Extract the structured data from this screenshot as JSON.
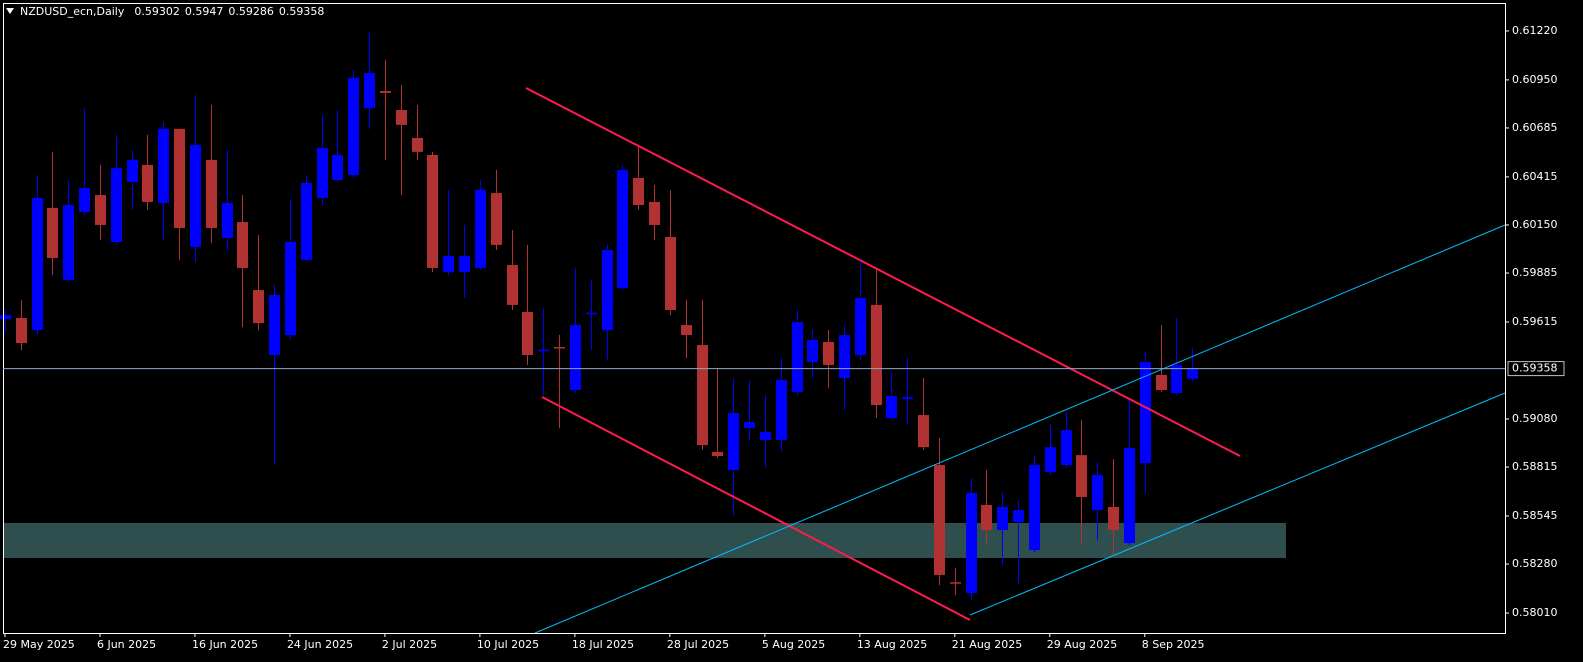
{
  "chart_data": {
    "type": "candlestick",
    "title": "NZDUSD_ecn,Daily",
    "categories": [
      "29 May 2025",
      null,
      null,
      null,
      null,
      null,
      "6 Jun 2025",
      null,
      null,
      null,
      null,
      null,
      "16 Jun 2025",
      null,
      null,
      null,
      null,
      null,
      "24 Jun 2025",
      null,
      null,
      null,
      null,
      null,
      "2 Jul 2025",
      null,
      null,
      null,
      null,
      null,
      "10 Jul 2025",
      null,
      null,
      null,
      null,
      null,
      "18 Jul 2025",
      null,
      null,
      null,
      null,
      null,
      "28 Jul 2025",
      null,
      null,
      null,
      null,
      null,
      "5 Aug 2025",
      null,
      null,
      null,
      null,
      null,
      "13 Aug 2025",
      null,
      null,
      null,
      null,
      null,
      "21 Aug 2025",
      null,
      null,
      null,
      null,
      null,
      "29 Aug 2025",
      null,
      null,
      null,
      null,
      null,
      "8 Sep 2025",
      null,
      null,
      null
    ],
    "open": [
      0.5963,
      0.59637,
      0.5957,
      0.60244,
      0.59847,
      0.60222,
      0.60315,
      0.60056,
      0.60387,
      0.60481,
      0.60271,
      0.6068,
      0.60029,
      0.60509,
      0.60078,
      0.60166,
      0.59791,
      0.59433,
      0.59543,
      0.59957,
      0.60299,
      0.60398,
      0.60426,
      0.60795,
      0.60889,
      0.60784,
      0.6063,
      0.60536,
      0.59891,
      0.59891,
      0.59913,
      0.60326,
      0.59929,
      0.5967,
      0.5946,
      0.59477,
      0.5924,
      0.5966,
      0.5957,
      0.59802,
      0.60409,
      0.60277,
      0.60084,
      0.59598,
      0.59488,
      0.58898,
      0.58799,
      0.5903,
      0.58964,
      0.58964,
      0.59229,
      0.59394,
      0.59505,
      0.59306,
      0.59433,
      0.59709,
      0.59085,
      0.5919,
      0.59102,
      0.58826,
      0.5818,
      0.5812,
      0.58606,
      0.58468,
      0.58512,
      0.58357,
      0.58787,
      0.58826,
      0.58881,
      0.58578,
      0.58595,
      0.58396,
      0.58837,
      0.59323,
      0.59223,
      0.59302
    ],
    "high": [
      0.5968,
      0.59736,
      0.60426,
      0.60553,
      0.60398,
      0.60795,
      0.60481,
      0.60646,
      0.60564,
      0.60646,
      0.60718,
      0.6068,
      0.60867,
      0.60812,
      0.60564,
      0.60315,
      0.60095,
      0.59819,
      0.60288,
      0.60426,
      0.60757,
      0.60784,
      0.61005,
      0.61209,
      0.6106,
      0.60922,
      0.60812,
      0.60553,
      0.60343,
      0.6015,
      0.60398,
      0.60453,
      0.60122,
      0.6004,
      0.59692,
      0.59543,
      0.59913,
      0.59847,
      0.6004,
      0.60481,
      0.60591,
      0.60371,
      0.60343,
      0.59736,
      0.59736,
      0.59361,
      0.59306,
      0.59295,
      0.59212,
      0.59416,
      0.59681,
      0.59571,
      0.59571,
      0.59598,
      0.59946,
      0.59902,
      0.59339,
      0.5942,
      0.59306,
      0.58975,
      0.58258,
      0.58754,
      0.58799,
      0.58677,
      0.58633,
      0.58881,
      0.59047,
      0.59118,
      0.59074,
      0.58843,
      0.58859,
      0.59185,
      0.5945,
      0.59598,
      0.59637,
      0.5947
    ],
    "low": [
      0.5956,
      0.5946,
      0.59543,
      0.59874,
      0.59836,
      0.60205,
      0.60067,
      0.6004,
      0.60233,
      0.60233,
      0.60067,
      0.59957,
      0.59946,
      0.60051,
      0.60012,
      0.59587,
      0.5957,
      0.58826,
      0.59516,
      0.59946,
      0.6026,
      0.60387,
      0.6041,
      0.6068,
      0.60508,
      0.60315,
      0.60508,
      0.59891,
      0.59874,
      0.59747,
      0.59902,
      0.60012,
      0.59681,
      0.59378,
      0.59212,
      0.5903,
      0.59223,
      0.5946,
      0.59405,
      0.59791,
      0.60233,
      0.60067,
      0.59653,
      0.59416,
      0.58909,
      0.58865,
      0.5855,
      0.58964,
      0.58809,
      0.58898,
      0.59212,
      0.59306,
      0.59251,
      0.5913,
      0.59405,
      0.59085,
      0.59074,
      0.5905,
      0.58909,
      0.58164,
      0.58109,
      0.58081,
      0.58385,
      0.58275,
      0.58175,
      0.58346,
      0.58771,
      0.58809,
      0.58385,
      0.58412,
      0.5833,
      0.58385,
      0.58672,
      0.59229,
      0.59212,
      0.59286
    ],
    "close": [
      0.59653,
      0.59499,
      0.60299,
      0.59968,
      0.6026,
      0.60354,
      0.6015,
      0.60464,
      0.60509,
      0.60277,
      0.6068,
      0.60133,
      0.60591,
      0.60133,
      0.60271,
      0.59913,
      0.59609,
      0.59764,
      0.60056,
      0.60382,
      0.60575,
      0.60536,
      0.60961,
      0.60988,
      0.60878,
      0.60702,
      0.60553,
      0.59913,
      0.59979,
      0.59979,
      0.60343,
      0.6004,
      0.59709,
      0.59433,
      0.59462,
      0.59471,
      0.59598,
      0.59666,
      0.60012,
      0.60453,
      0.6026,
      0.6015,
      0.59681,
      0.59543,
      0.58936,
      0.58876,
      0.59113,
      0.59063,
      0.59008,
      0.59295,
      0.59614,
      0.59516,
      0.59378,
      0.59543,
      0.59747,
      0.59157,
      0.59207,
      0.592,
      0.58925,
      0.5822,
      0.58175,
      0.58672,
      0.58468,
      0.58595,
      0.58578,
      0.58826,
      0.58925,
      0.59019,
      0.5865,
      0.58771,
      0.58468,
      0.5892,
      0.59394,
      0.5924,
      0.59378,
      0.59358
    ],
    "up_color": "#0000ff",
    "down_color": "#b03232",
    "ylim": [
      0.579,
      0.61374
    ],
    "yticks": [
      {
        "value": 0.6122,
        "label": "0.61220"
      },
      {
        "value": 0.6095,
        "label": "0.60950"
      },
      0.60685,
      0.60415,
      {
        "value": 0.6015,
        "label": "0.60150"
      },
      0.59885,
      0.59615,
      {
        "value": 0.5908,
        "label": "0.59080"
      },
      0.58815,
      0.58545,
      {
        "value": 0.5828,
        "label": "0.58280"
      },
      {
        "value": 0.5801,
        "label": "0.58010"
      }
    ],
    "current_price": 0.59358
  }
}
